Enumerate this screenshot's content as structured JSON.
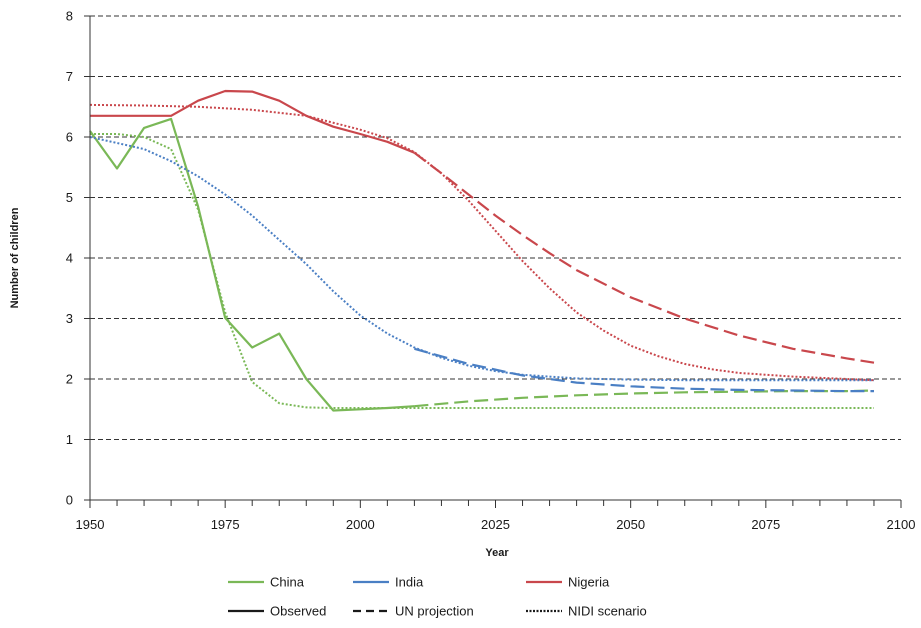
{
  "chart_data": {
    "type": "line",
    "title": "",
    "xlabel": "Year",
    "ylabel": "Number of children",
    "xlim": [
      1950,
      2100
    ],
    "ylim": [
      0,
      8
    ],
    "x_ticks": [
      1950,
      1975,
      2000,
      2025,
      2050,
      2075,
      2100
    ],
    "y_ticks": [
      0,
      1,
      2,
      3,
      4,
      5,
      6,
      7,
      8
    ],
    "grid": "horizontal dashed",
    "colors": {
      "China": "#7ab857",
      "India": "#4a7fc4",
      "Nigeria": "#c9474c",
      "Legend line": "#1a1a1a"
    },
    "series": [
      {
        "name": "China",
        "line_style": "Observed",
        "x": [
          1950,
          1955,
          1960,
          1965,
          1970,
          1975,
          1980,
          1985,
          1990,
          1995,
          2000,
          2005,
          2010
        ],
        "values": [
          6.1,
          5.48,
          6.15,
          6.3,
          4.85,
          3.01,
          2.52,
          2.75,
          2.0,
          1.48,
          1.5,
          1.52,
          1.55
        ]
      },
      {
        "name": "China",
        "line_style": "UN projection",
        "x": [
          2010,
          2020,
          2030,
          2040,
          2050,
          2060,
          2070,
          2080,
          2090,
          2095
        ],
        "values": [
          1.55,
          1.63,
          1.69,
          1.73,
          1.76,
          1.78,
          1.79,
          1.8,
          1.8,
          1.81
        ]
      },
      {
        "name": "China",
        "line_style": "NIDI scenario",
        "x": [
          1950,
          1955,
          1960,
          1965,
          1970,
          1975,
          1980,
          1985,
          1990,
          1995,
          2000,
          2010,
          2020,
          2030,
          2040,
          2050,
          2060,
          2070,
          2080,
          2090,
          2095
        ],
        "values": [
          6.05,
          6.05,
          6.0,
          5.8,
          4.8,
          3.1,
          1.95,
          1.6,
          1.53,
          1.52,
          1.52,
          1.52,
          1.52,
          1.52,
          1.52,
          1.52,
          1.52,
          1.52,
          1.52,
          1.52,
          1.52
        ]
      },
      {
        "name": "India",
        "line_style": "UN projection",
        "x": [
          2010,
          2020,
          2030,
          2040,
          2050,
          2060,
          2070,
          2080,
          2090,
          2095
        ],
        "values": [
          2.5,
          2.25,
          2.06,
          1.94,
          1.88,
          1.84,
          1.82,
          1.81,
          1.8,
          1.8
        ]
      },
      {
        "name": "India",
        "line_style": "NIDI scenario",
        "x": [
          1950,
          1955,
          1960,
          1965,
          1970,
          1975,
          1980,
          1985,
          1990,
          1995,
          2000,
          2005,
          2010,
          2015,
          2020,
          2025,
          2030,
          2040,
          2050,
          2060,
          2070,
          2080,
          2090,
          2095
        ],
        "values": [
          6.0,
          5.9,
          5.8,
          5.6,
          5.35,
          5.05,
          4.7,
          4.3,
          3.9,
          3.45,
          3.05,
          2.75,
          2.52,
          2.35,
          2.22,
          2.13,
          2.07,
          2.01,
          1.99,
          1.98,
          1.98,
          1.98,
          1.98,
          1.98
        ]
      },
      {
        "name": "Nigeria",
        "line_style": "Observed",
        "x": [
          1950,
          1955,
          1960,
          1965,
          1970,
          1975,
          1980,
          1985,
          1990,
          1995,
          2000,
          2005,
          2010
        ],
        "values": [
          6.35,
          6.35,
          6.35,
          6.35,
          6.6,
          6.76,
          6.75,
          6.6,
          6.35,
          6.17,
          6.05,
          5.92,
          5.74
        ]
      },
      {
        "name": "Nigeria",
        "line_style": "UN projection",
        "x": [
          2010,
          2015,
          2020,
          2025,
          2030,
          2035,
          2040,
          2050,
          2060,
          2070,
          2080,
          2090,
          2095
        ],
        "values": [
          5.74,
          5.4,
          5.05,
          4.7,
          4.38,
          4.08,
          3.8,
          3.35,
          3.0,
          2.72,
          2.5,
          2.34,
          2.27
        ]
      },
      {
        "name": "Nigeria",
        "line_style": "NIDI scenario",
        "x": [
          1950,
          1960,
          1970,
          1980,
          1990,
          2000,
          2005,
          2010,
          2015,
          2020,
          2025,
          2030,
          2035,
          2040,
          2045,
          2050,
          2055,
          2060,
          2065,
          2070,
          2080,
          2090,
          2095
        ],
        "values": [
          6.53,
          6.52,
          6.5,
          6.45,
          6.35,
          6.12,
          5.98,
          5.75,
          5.4,
          4.95,
          4.45,
          3.95,
          3.5,
          3.1,
          2.8,
          2.55,
          2.38,
          2.25,
          2.16,
          2.1,
          2.04,
          2.0,
          1.98
        ]
      }
    ],
    "legend": {
      "placement": "bottom",
      "countries": [
        "China",
        "India",
        "Nigeria"
      ],
      "styles": [
        "Observed",
        "UN projection",
        "NIDI scenario"
      ]
    }
  }
}
